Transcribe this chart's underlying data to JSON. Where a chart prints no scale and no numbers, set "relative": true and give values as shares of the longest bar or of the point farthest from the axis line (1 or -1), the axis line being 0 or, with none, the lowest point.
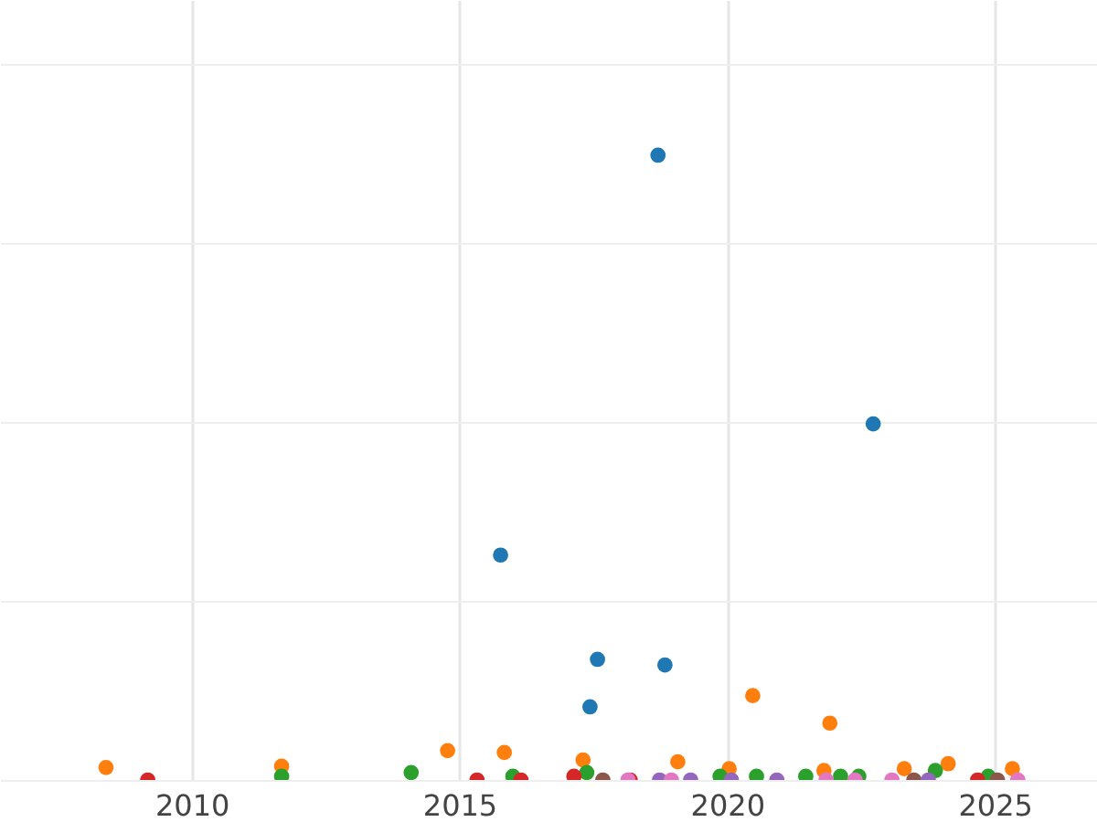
{
  "chart_data": {
    "type": "scatter",
    "relative": true,
    "xlim": [
      2006.42,
      2026.91
    ],
    "xticks": [
      2010,
      2015,
      2020,
      2025
    ],
    "grid": true,
    "legend": false,
    "marker": "circle",
    "tick_labels": "x",
    "series": [
      {
        "color": "#1f77b4",
        "x": [
          2018.71,
          2022.73,
          2015.77,
          2017.58,
          2018.84,
          2017.44
        ],
        "values": [
          1.0,
          0.57,
          0.36,
          0.193,
          0.184,
          0.117
        ]
      },
      {
        "color": "#ff7f0e",
        "x": [
          2008.4,
          2011.68,
          2014.78,
          2015.84,
          2020.48,
          2021.92,
          2017.31,
          2019.08,
          2020.04,
          2021.81,
          2023.31,
          2024.13,
          2025.33
        ],
        "values": [
          0.02,
          0.022,
          0.047,
          0.044,
          0.135,
          0.091,
          0.032,
          0.029,
          0.018,
          0.015,
          0.018,
          0.026,
          0.018
        ]
      },
      {
        "color": "#2ca02c",
        "x": [
          2011.68,
          2014.1,
          2016.0,
          2017.38,
          2019.87,
          2020.55,
          2021.47,
          2022.12,
          2022.46,
          2023.89,
          2024.88
        ],
        "values": [
          0.006,
          0.012,
          0.006,
          0.012,
          0.006,
          0.006,
          0.006,
          0.006,
          0.006,
          0.015,
          0.006
        ]
      },
      {
        "color": "#d62728",
        "x": [
          2009.18,
          2015.33,
          2016.15,
          2017.14,
          2018.19,
          2024.68
        ],
        "values": [
          0,
          0,
          0,
          0.006,
          0,
          0
        ]
      },
      {
        "color": "#8c564b",
        "x": [
          2017.68,
          2023.49,
          2025.05
        ],
        "values": [
          0,
          0,
          0
        ]
      },
      {
        "color": "#9467bd",
        "x": [
          2018.74,
          2019.32,
          2020.08,
          2020.93,
          2023.76
        ],
        "values": [
          0,
          0,
          0,
          0,
          0
        ]
      },
      {
        "color": "#e377c2",
        "x": [
          2018.15,
          2018.96,
          2021.85,
          2022.39,
          2023.08,
          2025.43
        ],
        "values": [
          0,
          0,
          0,
          0,
          0,
          0
        ]
      }
    ]
  }
}
